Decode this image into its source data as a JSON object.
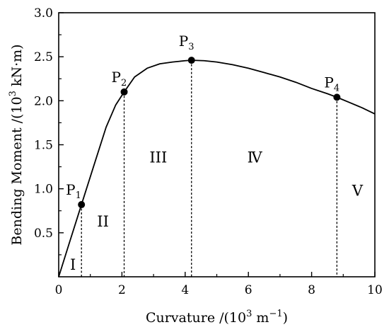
{
  "chart_data": {
    "type": "line",
    "xlabel": "Curvature  /(10",
    "xlabel_sup": "3",
    "xlabel_unit": " m",
    "xlabel_unit_sup": "−1",
    "xlabel_end": ")",
    "ylabel": "Bending Moment /(10",
    "ylabel_sup": "3",
    "ylabel_end": " kN·m)",
    "xlim": [
      0,
      10
    ],
    "ylim": [
      0,
      3.0
    ],
    "x_ticks": [
      "0",
      "2",
      "4",
      "6",
      "8",
      "10"
    ],
    "y_ticks": [
      "0.5",
      "1.0",
      "1.5",
      "2.0",
      "2.5",
      "3.0"
    ],
    "grid": false,
    "series": [
      {
        "x": [
          0,
          0.35,
          0.72,
          1.1,
          1.5,
          1.8,
          2.07,
          2.4,
          2.8,
          3.2,
          3.6,
          4.0,
          4.2,
          4.6,
          5.0,
          5.5,
          6.0,
          6.5,
          7.0,
          7.5,
          8.0,
          8.5,
          8.8,
          9.2,
          9.6,
          10.0
        ],
        "y": [
          0,
          0.4,
          0.82,
          1.25,
          1.7,
          1.95,
          2.1,
          2.27,
          2.37,
          2.42,
          2.44,
          2.455,
          2.46,
          2.455,
          2.44,
          2.41,
          2.37,
          2.32,
          2.27,
          2.21,
          2.14,
          2.08,
          2.04,
          1.98,
          1.92,
          1.85
        ]
      }
    ],
    "points": [
      {
        "label": "P",
        "sub": "1",
        "x": 0.72,
        "y": 0.82
      },
      {
        "label": "P",
        "sub": "2",
        "x": 2.07,
        "y": 2.1
      },
      {
        "label": "P",
        "sub": "3",
        "x": 4.2,
        "y": 2.46
      },
      {
        "label": "P",
        "sub": "4",
        "x": 8.8,
        "y": 2.04
      }
    ],
    "regions": [
      {
        "label": "I",
        "x": 0.45,
        "y": 0.08
      },
      {
        "label": "II",
        "x": 1.4,
        "y": 0.57
      },
      {
        "label": "III",
        "x": 3.15,
        "y": 1.3
      },
      {
        "label": "Ⅳ",
        "x": 6.2,
        "y": 1.3
      },
      {
        "label": "V",
        "x": 9.45,
        "y": 0.92
      }
    ]
  }
}
